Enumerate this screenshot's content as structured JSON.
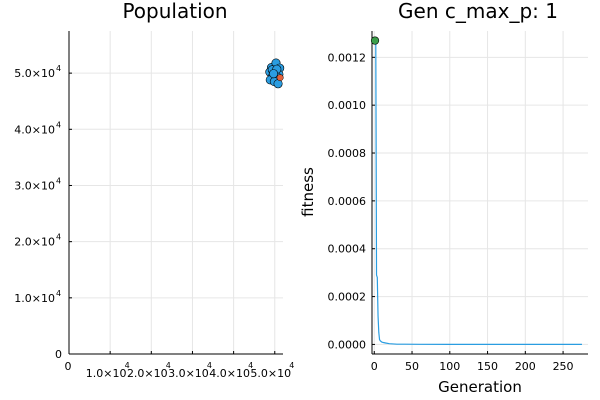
{
  "colors": {
    "population_points": "#2a9de1",
    "highlight_point": "#e2623b",
    "fitness_line": "#2a9de1",
    "best_point": "#3c9e4a",
    "grid": "#e6e6e6",
    "axis": "#000000"
  },
  "chart_data": [
    {
      "type": "scatter",
      "title": "Population",
      "xlabel": "",
      "ylabel": "",
      "grid": true,
      "xlim": [
        0,
        52000
      ],
      "ylim": [
        0,
        57500
      ],
      "x_ticks": [
        {
          "value": 0,
          "mantissa": "0",
          "exp": ""
        },
        {
          "value": 10000,
          "mantissa": "1.0×10",
          "exp": "4"
        },
        {
          "value": 20000,
          "mantissa": "2.0×10",
          "exp": "4"
        },
        {
          "value": 30000,
          "mantissa": "3.0×10",
          "exp": "4"
        },
        {
          "value": 40000,
          "mantissa": "4.0×10",
          "exp": "4"
        },
        {
          "value": 50000,
          "mantissa": "5.0×10",
          "exp": "4"
        }
      ],
      "y_ticks": [
        {
          "value": 0,
          "mantissa": "0",
          "exp": ""
        },
        {
          "value": 10000,
          "mantissa": "1.0×10",
          "exp": "4"
        },
        {
          "value": 20000,
          "mantissa": "2.0×10",
          "exp": "4"
        },
        {
          "value": 30000,
          "mantissa": "3.0×10",
          "exp": "4"
        },
        {
          "value": 40000,
          "mantissa": "4.0×10",
          "exp": "4"
        },
        {
          "value": 50000,
          "mantissa": "5.0×10",
          "exp": "4"
        }
      ],
      "series": [
        {
          "points": [
            [
              49200,
              51000
            ],
            [
              50300,
              51800
            ],
            [
              51200,
              50900
            ],
            [
              48800,
              50200
            ],
            [
              50000,
              50100
            ],
            [
              51000,
              49800
            ],
            [
              49500,
              49500
            ],
            [
              50600,
              49300
            ],
            [
              48900,
              48800
            ],
            [
              49900,
              48500
            ],
            [
              50800,
              48100
            ],
            [
              49400,
              50600
            ],
            [
              50500,
              50700
            ],
            [
              49700,
              49900
            ]
          ]
        },
        {
          "points": [
            [
              51300,
              49200
            ]
          ]
        }
      ]
    },
    {
      "type": "line",
      "title": "Gen c_max_p: 1",
      "xlabel": "Generation",
      "ylabel": "fitness",
      "grid": true,
      "xlim": [
        -3,
        283
      ],
      "ylim": [
        -4e-05,
        0.00131
      ],
      "x_ticks": [
        0,
        50,
        100,
        150,
        200,
        250
      ],
      "y_ticks": [
        0.0,
        0.0002,
        0.0004,
        0.0006,
        0.0008,
        0.001,
        0.0012
      ],
      "y_tick_labels": [
        "0.0000",
        "0.0002",
        "0.0004",
        "0.0006",
        "0.0008",
        "0.0010",
        "0.0012"
      ],
      "series": [
        {
          "x": [
            1,
            2,
            3,
            4,
            5,
            6,
            7,
            8,
            10,
            12,
            15,
            20,
            25,
            30,
            40,
            60,
            100,
            150,
            200,
            250,
            275
          ],
          "values": [
            0.00127,
            0.00127,
            0.00029,
            0.00028,
            0.00012,
            5e-05,
            2e-05,
            1.5e-05,
            1e-05,
            8e-06,
            6e-06,
            3e-06,
            2e-06,
            1e-06,
            1e-06,
            5e-07,
            3e-07,
            2e-07,
            1e-07,
            1e-07,
            1e-07
          ]
        }
      ],
      "marker": {
        "x": 1,
        "y": 0.00127
      }
    }
  ]
}
